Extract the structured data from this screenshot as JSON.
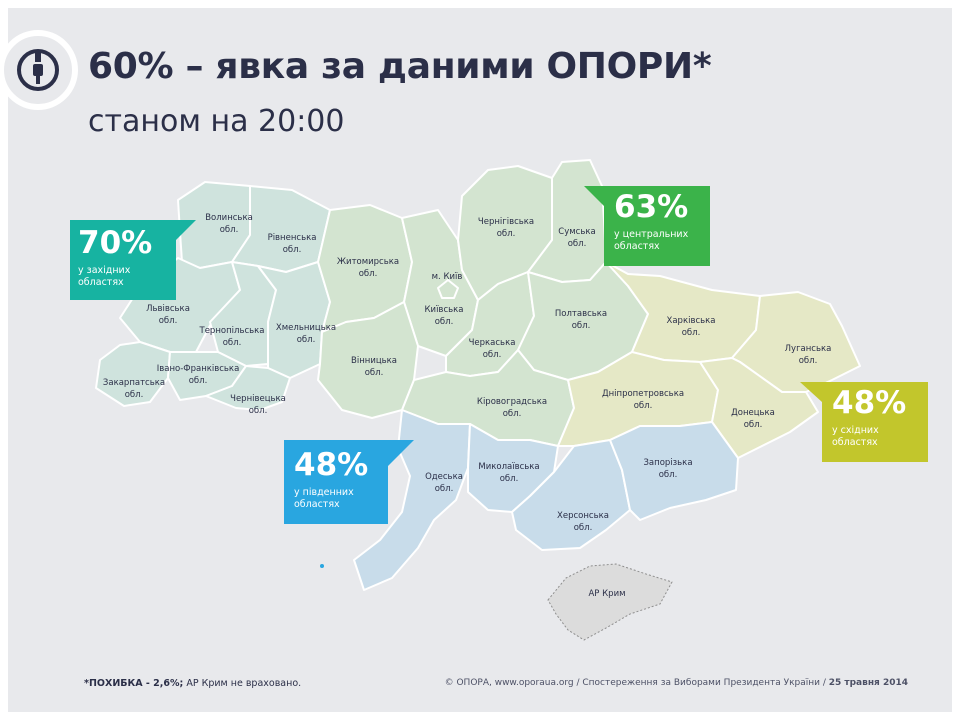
{
  "header": {
    "title": "60% – явка за даними ОПОРИ*",
    "subtitle": "станом на 20:00"
  },
  "callouts": {
    "west": {
      "percent": "70%",
      "text": "у західних\nобластях",
      "color": "#17b3a1"
    },
    "center": {
      "percent": "63%",
      "text": "у центральних\nобластях",
      "color": "#3bb34a"
    },
    "east": {
      "percent": "48%",
      "text": "у східних\nобластях",
      "color": "#c2c62c"
    },
    "south": {
      "percent": "48%",
      "text": "у південних\nобластях",
      "color": "#29a6e0"
    }
  },
  "regions": {
    "volyn": "Волинська\nобл.",
    "rivne": "Рівненська\nобл.",
    "lviv": "Львівська\nобл.",
    "ternopil": "Тернопільська\nобл.",
    "khmelnytskyi": "Хмельницька\nобл.",
    "zakarpattia": "Закарпатська\nобл.",
    "ivano_frankivsk": "Івано-Франківська\nобл.",
    "chernivtsi": "Чернівецька\nобл.",
    "zhytomyr": "Житомирська\nобл.",
    "kyiv_city": "м. Київ",
    "kyiv": "Київська\nобл.",
    "chernihiv": "Чернігівська\nобл.",
    "sumy": "Сумська\nобл.",
    "vinnytsia": "Вінницька\nобл.",
    "cherkasy": "Черкаська\nобл.",
    "poltava": "Полтавська\nобл.",
    "kirovohrad": "Кіровоградська\nобл.",
    "kharkiv": "Харківська\nобл.",
    "luhansk": "Луганська\nобл.",
    "dnipropetrovsk": "Дніпропетровська\nобл.",
    "donetsk": "Донецька\nобл.",
    "odesa": "Одеська\nобл.",
    "mykolaiv": "Миколаївська\nобл.",
    "zaporizhzhia": "Запорізька\nобл.",
    "kherson": "Херсонська\nобл.",
    "crimea": "АР Крим"
  },
  "footer": {
    "note_bold": "*ПОХИБКА - 2,6%;",
    "note_rest": " АР Крим не враховано.",
    "source": "© ОПОРА, www.oporaua.org / Спостереження за Виборами Президента України / ",
    "date": "25 травня 2014"
  },
  "colors": {
    "west_fill": "#cfe3dd",
    "center_fill": "#d3e4d0",
    "east_fill": "#e5e8c6",
    "south_fill": "#c8dcea",
    "crimea_fill": "#dcdcdc",
    "title": "#2b2f48"
  },
  "icons": {
    "logo": "opora-logo-icon"
  }
}
